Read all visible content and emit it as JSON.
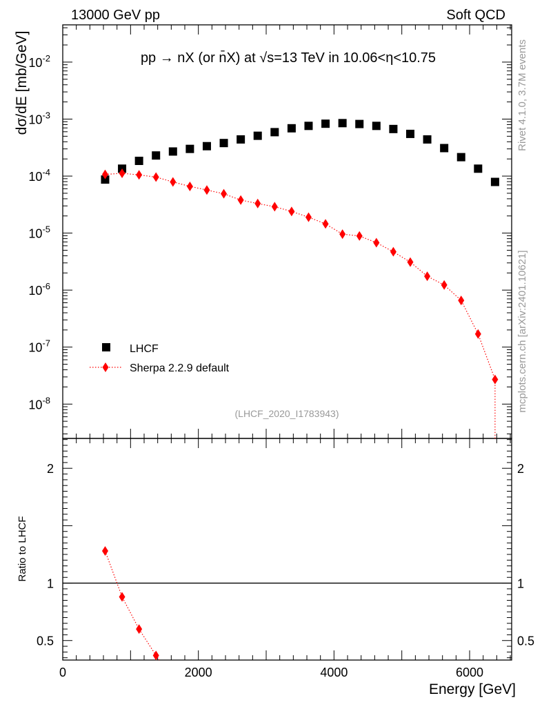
{
  "header": {
    "left": "13000 GeV pp",
    "right": "Soft QCD"
  },
  "chart_data": {
    "type": "scatter",
    "title": "pp → nX (or n̄X) at √s=13 TeV in 10.06<η<10.75",
    "xlabel": "Energy [GeV]",
    "ylabel": "dσ/dE [mb/GeV]",
    "ratio_ylabel": "Ratio to LHCF",
    "xlim": [
      0,
      6620
    ],
    "ylim": [
      2.5e-09,
      0.045
    ],
    "yscale": "log",
    "ratio_ylim": [
      0.33,
      2.26
    ],
    "x_ticks": [
      "0",
      "2000",
      "4000",
      "6000"
    ],
    "y_ticks": [
      "10^-8",
      "10^-7",
      "10^-6",
      "10^-5",
      "10^-4",
      "10^-3",
      "10^-2"
    ],
    "ratio_ticks": [
      "0.5",
      "1",
      "2"
    ],
    "analysis_id": "(LHCF_2020_I1783943)",
    "side_label_top": "Rivet 4.1.0,  3.7M events",
    "side_label_bottom": "mcplots.cern.ch [arXiv:2401.10621]",
    "legend": {
      "placement": "lower-left",
      "entries": [
        "LHCF",
        "Sherpa 2.2.9 default"
      ]
    },
    "x": [
      625,
      875,
      1125,
      1375,
      1625,
      1875,
      2125,
      2375,
      2625,
      2875,
      3125,
      3375,
      3625,
      3875,
      4125,
      4375,
      4625,
      4875,
      5125,
      5375,
      5625,
      5875,
      6125,
      6375
    ],
    "series": [
      {
        "name": "LHCF",
        "color": "#000000",
        "marker": "square",
        "values": [
          8.7e-05,
          0.000135,
          0.000185,
          0.00023,
          0.00027,
          0.0003,
          0.000335,
          0.00038,
          0.00044,
          0.00051,
          0.00059,
          0.00069,
          0.00076,
          0.00083,
          0.00085,
          0.00082,
          0.00076,
          0.00067,
          0.00055,
          0.00044,
          0.00031,
          0.000215,
          0.000135,
          7.9e-05
        ]
      },
      {
        "name": "Sherpa 2.2.9 default",
        "color": "#ff0000",
        "marker": "diamond",
        "line": "dotted",
        "values": [
          0.000107,
          0.000112,
          0.000105,
          9.6e-05,
          7.9e-05,
          6.6e-05,
          5.7e-05,
          4.9e-05,
          3.8e-05,
          3.3e-05,
          2.9e-05,
          2.4e-05,
          1.9e-05,
          1.45e-05,
          9.6e-06,
          8.9e-06,
          6.8e-06,
          4.7e-06,
          3.1e-06,
          1.75e-06,
          1.23e-06,
          6.6e-07,
          1.7e-07,
          2.7e-08
        ],
        "ratio_x": [
          625,
          875,
          1125,
          1375
        ],
        "ratio_values": [
          1.28,
          0.88,
          0.6,
          0.37
        ]
      }
    ]
  }
}
